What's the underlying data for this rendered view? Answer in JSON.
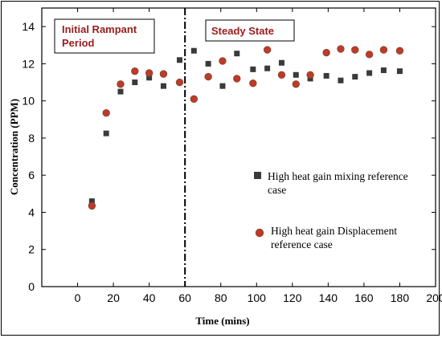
{
  "chart_data": {
    "type": "scatter",
    "xlabel": "Time (mins)",
    "ylabel": "Concentration (PPM)",
    "xlim": [
      -20,
      200
    ],
    "ylim": [
      0,
      15
    ],
    "xticks": [
      0,
      20,
      40,
      60,
      80,
      100,
      120,
      140,
      160,
      180,
      200
    ],
    "yticks": [
      0,
      2,
      4,
      6,
      8,
      10,
      12,
      14
    ],
    "grid": false,
    "legend_position": "right",
    "series": [
      {
        "name": "High heat gain mixing reference case",
        "marker": "square",
        "color": "#3a3a3a",
        "x": [
          8,
          16,
          24,
          32,
          40,
          48,
          57,
          65,
          73,
          81,
          89,
          98,
          106,
          114,
          122,
          130,
          139,
          147,
          155,
          163,
          171,
          180
        ],
        "y": [
          4.6,
          8.25,
          10.5,
          11.0,
          11.25,
          10.8,
          12.2,
          12.7,
          12.0,
          10.8,
          12.55,
          11.7,
          11.75,
          12.05,
          11.4,
          11.2,
          11.35,
          11.1,
          11.3,
          11.5,
          11.65,
          11.6
        ]
      },
      {
        "name": "High heat gain Displacement reference case",
        "marker": "circle",
        "color": "#c0392b",
        "x": [
          8,
          16,
          24,
          32,
          40,
          48,
          57,
          65,
          73,
          81,
          89,
          98,
          106,
          114,
          122,
          130,
          139,
          147,
          155,
          163,
          171,
          180
        ],
        "y": [
          4.35,
          9.35,
          10.9,
          11.6,
          11.5,
          11.45,
          11.0,
          10.1,
          11.3,
          12.15,
          11.2,
          10.95,
          12.75,
          11.4,
          10.9,
          11.4,
          12.6,
          12.8,
          12.75,
          12.5,
          12.75,
          12.7
        ]
      }
    ],
    "annotations": [
      {
        "text_lines": [
          "Initial Rampant",
          "Period"
        ]
      },
      {
        "text_lines": [
          "Steady State"
        ]
      }
    ],
    "vertical_line": {
      "x": 60,
      "style": "dash-dot"
    }
  }
}
